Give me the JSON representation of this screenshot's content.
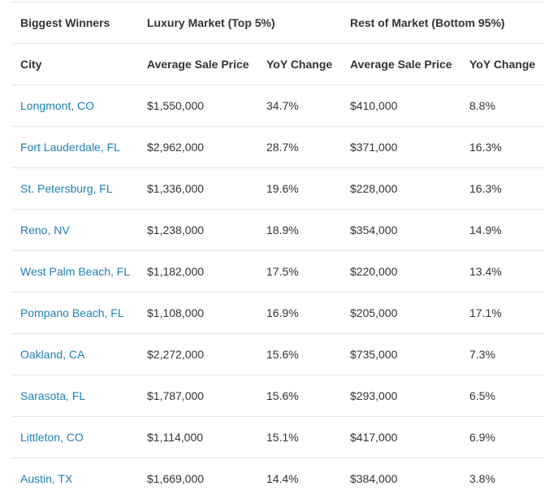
{
  "table": {
    "group_headers": {
      "first": "Biggest Winners",
      "luxury": "Luxury Market (Top 5%)",
      "rest": "Rest of Market (Bottom 95%)"
    },
    "column_headers": {
      "city": "City",
      "luxury_price": "Average Sale Price",
      "luxury_yoy": "YoY Change",
      "rest_price": "Average Sale Price",
      "rest_yoy": "YoY Change"
    },
    "rows": [
      {
        "city": "Longmont, CO",
        "luxury_price": "$1,550,000",
        "luxury_yoy": "34.7%",
        "rest_price": "$410,000",
        "rest_yoy": "8.8%"
      },
      {
        "city": "Fort Lauderdale, FL",
        "luxury_price": "$2,962,000",
        "luxury_yoy": "28.7%",
        "rest_price": "$371,000",
        "rest_yoy": "16.3%"
      },
      {
        "city": "St. Petersburg, FL",
        "luxury_price": "$1,336,000",
        "luxury_yoy": "19.6%",
        "rest_price": "$228,000",
        "rest_yoy": "16.3%"
      },
      {
        "city": "Reno, NV",
        "luxury_price": "$1,238,000",
        "luxury_yoy": "18.9%",
        "rest_price": "$354,000",
        "rest_yoy": "14.9%"
      },
      {
        "city": "West Palm Beach, FL",
        "luxury_price": "$1,182,000",
        "luxury_yoy": "17.5%",
        "rest_price": "$220,000",
        "rest_yoy": "13.4%"
      },
      {
        "city": "Pompano Beach, FL",
        "luxury_price": "$1,108,000",
        "luxury_yoy": "16.9%",
        "rest_price": "$205,000",
        "rest_yoy": "17.1%"
      },
      {
        "city": "Oakland, CA",
        "luxury_price": "$2,272,000",
        "luxury_yoy": "15.6%",
        "rest_price": "$735,000",
        "rest_yoy": "7.3%"
      },
      {
        "city": "Sarasota, FL",
        "luxury_price": "$1,787,000",
        "luxury_yoy": "15.6%",
        "rest_price": "$293,000",
        "rest_yoy": "6.5%"
      },
      {
        "city": "Littleton, CO",
        "luxury_price": "$1,114,000",
        "luxury_yoy": "15.1%",
        "rest_price": "$417,000",
        "rest_yoy": "6.9%"
      },
      {
        "city": "Austin, TX",
        "luxury_price": "$1,669,000",
        "luxury_yoy": "14.4%",
        "rest_price": "$384,000",
        "rest_yoy": "3.8%"
      }
    ]
  },
  "colors": {
    "link": "#1e7fb3",
    "text": "#333333",
    "divider": "#e3e3e3"
  }
}
